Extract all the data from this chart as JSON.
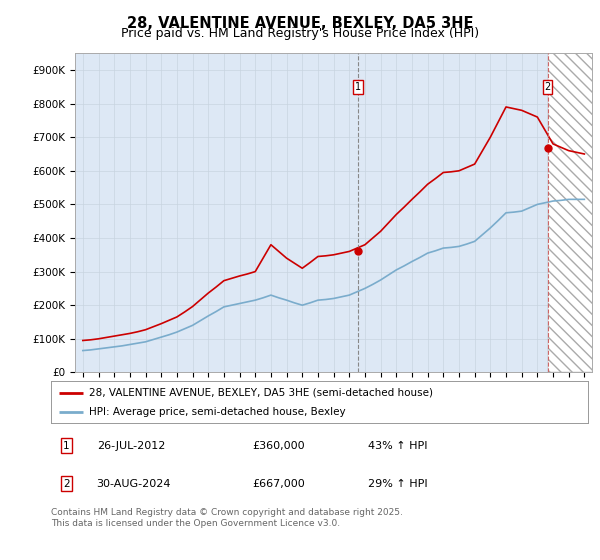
{
  "title": "28, VALENTINE AVENUE, BEXLEY, DA5 3HE",
  "subtitle": "Price paid vs. HM Land Registry's House Price Index (HPI)",
  "ylabel_ticks": [
    "£0",
    "£100K",
    "£200K",
    "£300K",
    "£400K",
    "£500K",
    "£600K",
    "£700K",
    "£800K",
    "£900K"
  ],
  "ylim": [
    0,
    950000
  ],
  "xlim_start": 1994.5,
  "xlim_end": 2027.5,
  "marker1_x": 2012.57,
  "marker1_y": 360000,
  "marker2_x": 2024.65,
  "marker2_y": 667000,
  "future_start": 2024.65,
  "legend1": "28, VALENTINE AVENUE, BEXLEY, DA5 3HE (semi-detached house)",
  "legend2": "HPI: Average price, semi-detached house, Bexley",
  "footer": "Contains HM Land Registry data © Crown copyright and database right 2025.\nThis data is licensed under the Open Government Licence v3.0.",
  "line1_color": "#cc0000",
  "line2_color": "#7aaccc",
  "background_color": "#dde8f5",
  "grid_color": "#c8d4e0",
  "title_fontsize": 10.5,
  "subtitle_fontsize": 9,
  "tick_fontsize": 7.5,
  "years": [
    1995,
    1995.5,
    1996,
    1996.5,
    1997,
    1997.5,
    1998,
    1998.5,
    1999,
    1999.5,
    2000,
    2000.5,
    2001,
    2001.5,
    2002,
    2002.5,
    2003,
    2003.5,
    2004,
    2004.5,
    2005,
    2005.5,
    2006,
    2006.5,
    2007,
    2007.5,
    2008,
    2008.5,
    2009,
    2009.5,
    2010,
    2010.5,
    2011,
    2011.5,
    2012,
    2012.5,
    2013,
    2013.5,
    2014,
    2014.5,
    2015,
    2015.5,
    2016,
    2016.5,
    2017,
    2017.5,
    2018,
    2018.5,
    2019,
    2019.5,
    2020,
    2020.5,
    2021,
    2021.5,
    2022,
    2022.5,
    2023,
    2023.5,
    2024,
    2024.5,
    2025,
    2025.5,
    2026,
    2026.5,
    2027
  ],
  "hpi_values": [
    65000,
    67000,
    70000,
    73000,
    76000,
    79000,
    83000,
    87000,
    91000,
    98000,
    105000,
    112000,
    120000,
    130000,
    140000,
    154000,
    168000,
    181000,
    195000,
    200000,
    205000,
    210000,
    215000,
    222000,
    230000,
    222000,
    215000,
    207000,
    200000,
    207000,
    215000,
    217000,
    220000,
    225000,
    230000,
    240000,
    250000,
    262000,
    275000,
    290000,
    305000,
    317000,
    330000,
    342000,
    355000,
    362000,
    370000,
    372000,
    375000,
    382000,
    390000,
    410000,
    430000,
    452000,
    475000,
    477000,
    480000,
    490000,
    500000,
    505000,
    510000,
    512000,
    515000,
    515000,
    515000
  ],
  "price_values": [
    95000,
    97000,
    100000,
    104000,
    108000,
    112000,
    116000,
    121000,
    127000,
    136000,
    145000,
    155000,
    165000,
    180000,
    196000,
    216000,
    236000,
    254000,
    273000,
    280000,
    287000,
    293000,
    300000,
    340000,
    380000,
    360000,
    340000,
    325000,
    310000,
    327000,
    345000,
    347000,
    350000,
    355000,
    360000,
    370000,
    380000,
    400000,
    420000,
    445000,
    470000,
    492000,
    515000,
    537000,
    560000,
    577000,
    595000,
    597000,
    600000,
    610000,
    620000,
    660000,
    700000,
    745000,
    790000,
    785000,
    780000,
    770000,
    760000,
    720000,
    680000,
    670000,
    660000,
    655000,
    650000
  ]
}
